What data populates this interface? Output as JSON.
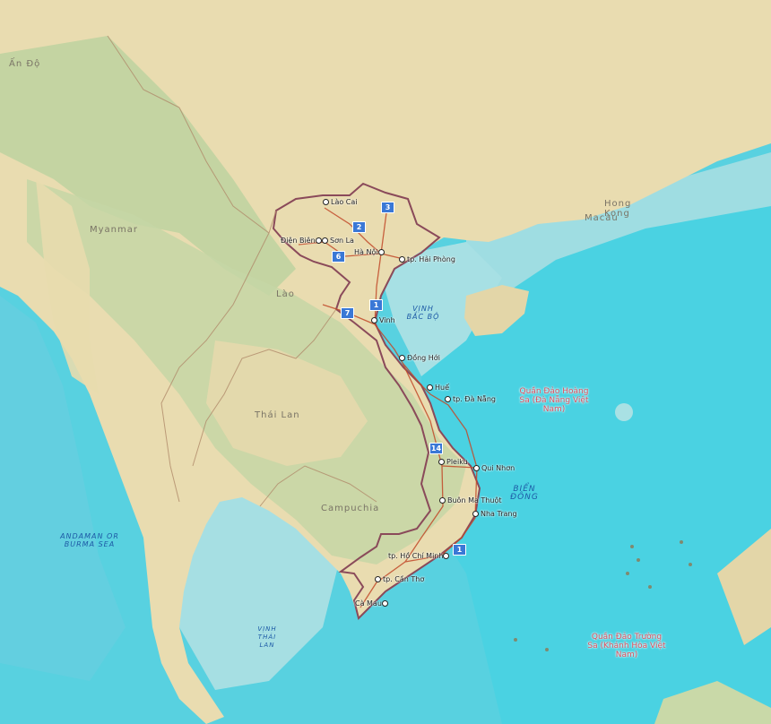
{
  "countries": [
    {
      "key": "an_do",
      "label": "Ấn Độ"
    },
    {
      "key": "myanmar",
      "label": "Myanmar"
    },
    {
      "key": "lao",
      "label": "Lào"
    },
    {
      "key": "thai_lan",
      "label": "Thái Lan"
    },
    {
      "key": "campuchia",
      "label": "Campuchia"
    },
    {
      "key": "hong_kong",
      "label": "Hong Kong"
    },
    {
      "key": "macau",
      "label": "Macau"
    }
  ],
  "seas": [
    {
      "key": "vinh_bac_bo",
      "label": "VỊNH BẮC BỘ"
    },
    {
      "key": "bien_dong",
      "label": "BIỂN ĐÔNG"
    },
    {
      "key": "andaman",
      "label": "ANDAMAN OR BURMA SEA"
    },
    {
      "key": "vinh_thai_lan",
      "label": "VỊNH THÁI LAN"
    }
  ],
  "islands": [
    {
      "key": "hoang_sa",
      "label": "Quần Đảo Hoàng Sa (Đà Nẵng Việt Nam)"
    },
    {
      "key": "truong_sa",
      "label": "Quần Đảo Trường Sa (Khánh Hòa Việt Nam)"
    }
  ],
  "cities": [
    {
      "key": "lao_cai",
      "label": "Lào Cai"
    },
    {
      "key": "dien_bien",
      "label": "Điện Biên"
    },
    {
      "key": "son_la",
      "label": "Sơn La"
    },
    {
      "key": "ha_noi",
      "label": "Hà Nội"
    },
    {
      "key": "hai_phong",
      "label": "tp. Hải Phòng"
    },
    {
      "key": "vinh",
      "label": "Vinh"
    },
    {
      "key": "dong_hoi",
      "label": "Đồng Hới"
    },
    {
      "key": "hue",
      "label": "Huế"
    },
    {
      "key": "da_nang",
      "label": "tp. Đà Nẵng"
    },
    {
      "key": "pleiku",
      "label": "Pleiku"
    },
    {
      "key": "qui_nhon",
      "label": "Qui Nhơn"
    },
    {
      "key": "buon_ma_thuot",
      "label": "Buôn Ma Thuột"
    },
    {
      "key": "nha_trang",
      "label": "Nha Trang"
    },
    {
      "key": "ho_chi_minh",
      "label": "tp. Hồ Chí Minh"
    },
    {
      "key": "can_tho",
      "label": "tp. Cần Thơ"
    },
    {
      "key": "ca_mau",
      "label": "Cà Mau"
    }
  ],
  "route_shields": [
    {
      "key": "r3",
      "label": "3"
    },
    {
      "key": "r2",
      "label": "2"
    },
    {
      "key": "r6",
      "label": "6"
    },
    {
      "key": "r1_north",
      "label": "1"
    },
    {
      "key": "r7",
      "label": "7"
    },
    {
      "key": "r14",
      "label": "14"
    },
    {
      "key": "r1_south",
      "label": "1"
    }
  ],
  "colors": {
    "land": "#e8dcb0",
    "land_green": "#b9cf9b",
    "sea_shallow": "#a9e1e4",
    "sea_deep": "#3fcde0",
    "vn_border": "#8a4a5a",
    "road": "#c24a2a",
    "shield": "#3a78d6"
  }
}
